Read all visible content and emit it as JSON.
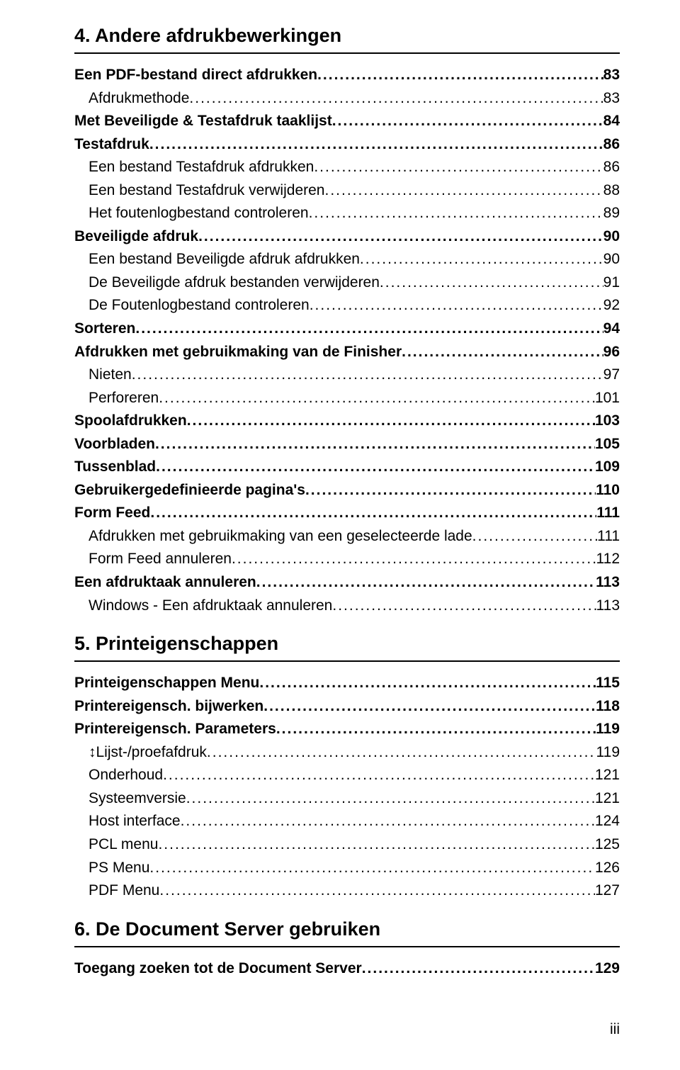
{
  "colors": {
    "text": "#000000",
    "background": "#ffffff",
    "rule": "#000000"
  },
  "typography": {
    "section_title_size": 27,
    "toc_size": 21,
    "footer_size": 21,
    "family": "Arial"
  },
  "sections": [
    {
      "title": "4. Andere afdrukbewerkingen",
      "entries": [
        {
          "level": 1,
          "label": "Een PDF-bestand direct afdrukken",
          "page": "83"
        },
        {
          "level": 2,
          "label": "Afdrukmethode",
          "page": "83"
        },
        {
          "level": 1,
          "label": "Met Beveiligde & Testafdruk taaklijst",
          "page": "84"
        },
        {
          "level": 1,
          "label": "Testafdruk",
          "page": "86"
        },
        {
          "level": 2,
          "label": "Een bestand Testafdruk afdrukken",
          "page": "86"
        },
        {
          "level": 2,
          "label": "Een bestand Testafdruk verwijderen",
          "page": "88"
        },
        {
          "level": 2,
          "label": "Het foutenlogbestand controleren",
          "page": "89"
        },
        {
          "level": 1,
          "label": "Beveiligde afdruk",
          "page": "90"
        },
        {
          "level": 2,
          "label": "Een bestand Beveiligde afdruk afdrukken",
          "page": "90"
        },
        {
          "level": 2,
          "label": "De Beveiligde afdruk bestanden verwijderen",
          "page": "91"
        },
        {
          "level": 2,
          "label": "De Foutenlogbestand controleren",
          "page": "92"
        },
        {
          "level": 1,
          "label": "Sorteren",
          "page": "94"
        },
        {
          "level": 1,
          "label": "Afdrukken met gebruikmaking van de Finisher",
          "page": "96"
        },
        {
          "level": 2,
          "label": "Nieten",
          "page": "97"
        },
        {
          "level": 2,
          "label": "Perforeren",
          "page": "101"
        },
        {
          "level": 1,
          "label": "Spoolafdrukken",
          "page": "103"
        },
        {
          "level": 1,
          "label": "Voorbladen",
          "page": "105"
        },
        {
          "level": 1,
          "label": "Tussenblad",
          "page": "109"
        },
        {
          "level": 1,
          "label": "Gebruikergedefinieerde pagina's",
          "page": "110"
        },
        {
          "level": 1,
          "label": "Form Feed",
          "page": "111"
        },
        {
          "level": 2,
          "label": "Afdrukken met gebruikmaking van een geselecteerde lade",
          "page": "111"
        },
        {
          "level": 2,
          "label": "Form Feed annuleren",
          "page": "112"
        },
        {
          "level": 1,
          "label": "Een afdruktaak annuleren",
          "page": "113"
        },
        {
          "level": 2,
          "label": "Windows - Een afdruktaak annuleren",
          "page": "113"
        }
      ]
    },
    {
      "title": "5. Printeigenschappen",
      "entries": [
        {
          "level": 1,
          "label": "Printeigenschappen Menu",
          "page": "115"
        },
        {
          "level": 1,
          "label": "Printereigensch. bijwerken",
          "page": "118"
        },
        {
          "level": 1,
          "label": "Printereigensch. Parameters",
          "page": "119"
        },
        {
          "level": 2,
          "label": "↕Lijst-/proefafdruk",
          "page": "119"
        },
        {
          "level": 2,
          "label": "Onderhoud",
          "page": "121"
        },
        {
          "level": 2,
          "label": "Systeemversie",
          "page": "121"
        },
        {
          "level": 2,
          "label": "Host interface",
          "page": "124"
        },
        {
          "level": 2,
          "label": "PCL menu",
          "page": "125"
        },
        {
          "level": 2,
          "label": "PS Menu",
          "page": "126"
        },
        {
          "level": 2,
          "label": "PDF Menu",
          "page": "127"
        }
      ]
    },
    {
      "title": "6. De Document Server gebruiken",
      "entries": [
        {
          "level": 1,
          "label": "Toegang zoeken tot de Document Server",
          "page": "129"
        }
      ]
    }
  ],
  "footer": "iii"
}
